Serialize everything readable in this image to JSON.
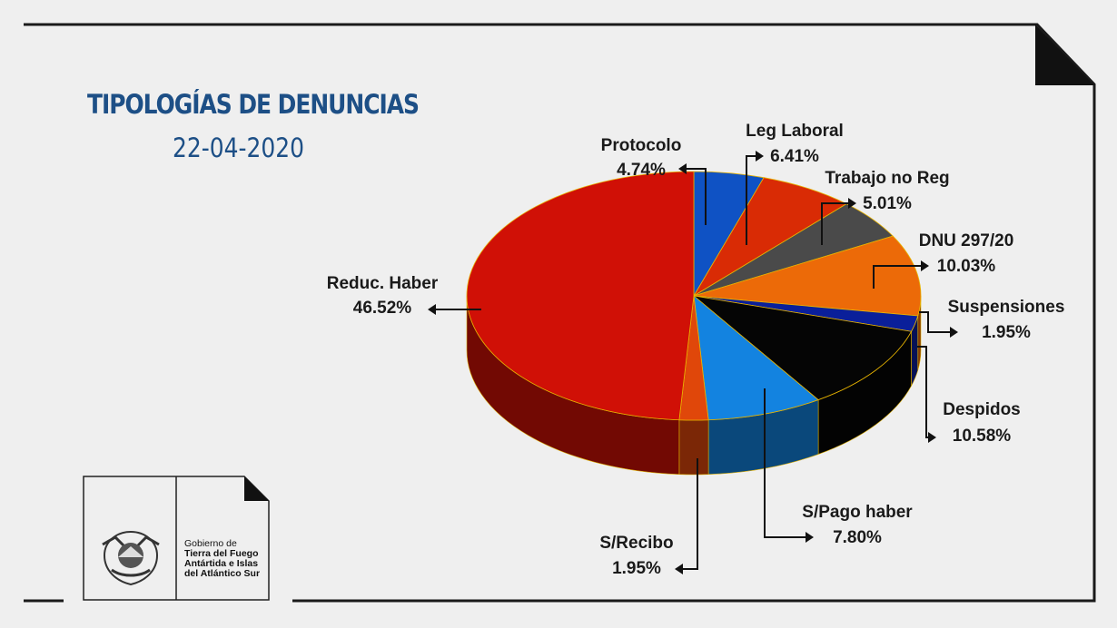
{
  "header": {
    "title": "TIPOLOGÍAS DE DENUNCIAS",
    "date": "22-04-2020"
  },
  "chart_data": {
    "type": "pie",
    "title": "TIPOLOGÍAS DE DENUNCIAS",
    "subtitle": "22-04-2020",
    "slices": [
      {
        "name": "Protocolo",
        "label": "4.74%",
        "value": 4.74,
        "color": "#0f52c4"
      },
      {
        "name": "Leg Laboral",
        "label": "6.41%",
        "value": 6.41,
        "color": "#d92b05"
      },
      {
        "name": "Trabajo no Reg",
        "label": "5.01%",
        "value": 5.01,
        "color": "#4a4a4a"
      },
      {
        "name": "DNU 297/20",
        "label": "10.03%",
        "value": 10.03,
        "color": "#ec6a08"
      },
      {
        "name": "Suspensiones",
        "label": "1.95%",
        "value": 1.95,
        "color": "#0a1f9a"
      },
      {
        "name": "Despidos",
        "label": "10.58%",
        "value": 10.58,
        "color": "#050505"
      },
      {
        "name": "S/Pago haber",
        "label": "7.80%",
        "value": 7.8,
        "color": "#1383e0"
      },
      {
        "name": "S/Recibo",
        "label": "1.95%",
        "value": 1.95,
        "color": "#e0470a"
      },
      {
        "name": "Reduc. Haber",
        "label": "46.52%",
        "value": 46.52,
        "color": "#d01006"
      }
    ],
    "start": "12 o'clock, clockwise",
    "style": "3d"
  },
  "logo": {
    "lines": [
      "Gobierno de",
      "Tierra del Fuego",
      "Antártida e Islas",
      "del Atlántico Sur"
    ]
  }
}
